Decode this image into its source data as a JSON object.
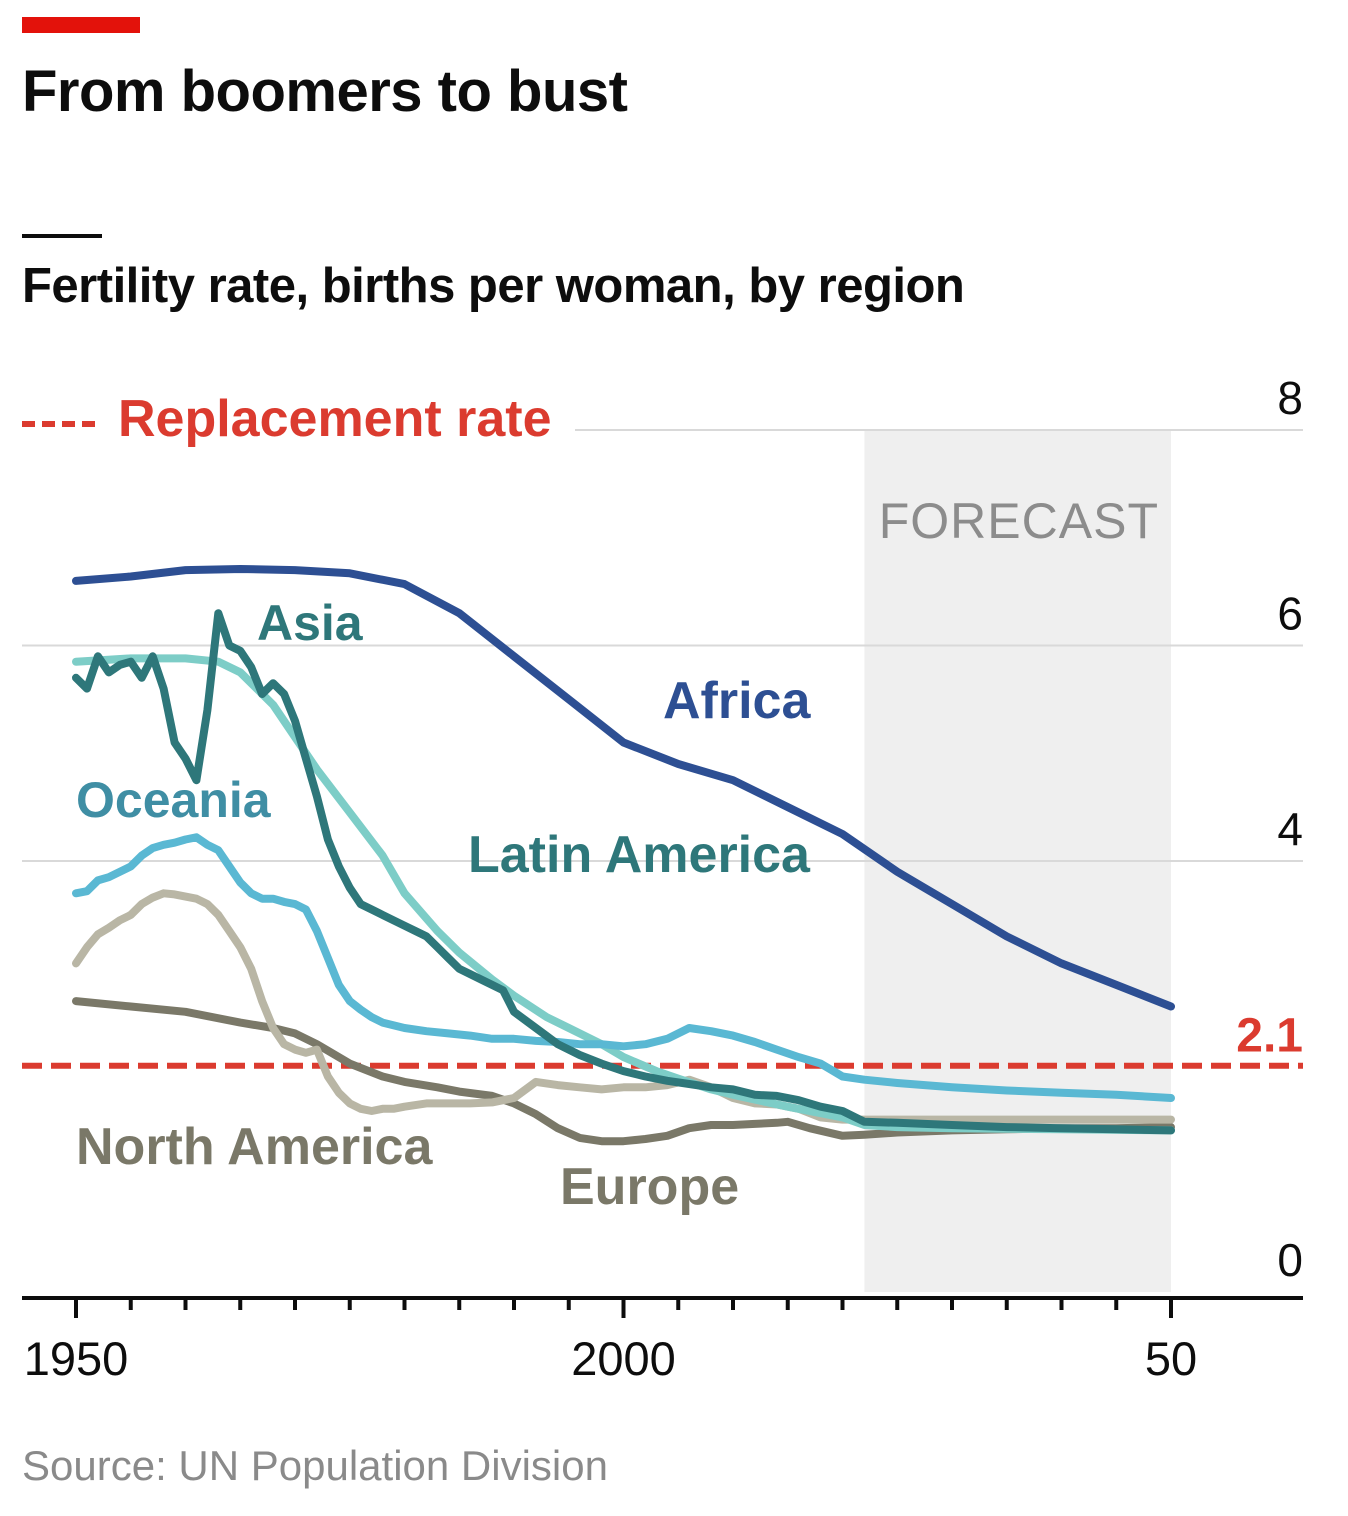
{
  "header": {
    "title": "From boomers to bust",
    "subtitle": "Fertility rate, births per woman, by region"
  },
  "footer": {
    "source": "Source: UN Population Division"
  },
  "colors": {
    "brand_red": "#e3120b",
    "replacement": "#db3b2f",
    "africa": "#2d4f93",
    "asia": "#2e777a",
    "latin_america": "#7dcdc7",
    "oceania": "#5ab8d3",
    "europe": "#b9b6a5",
    "north_america": "#7a7868",
    "forecast_shade": "#efefef",
    "grid": "#d9d9d9"
  },
  "chart_data": {
    "type": "line",
    "title": "From boomers to bust",
    "subtitle": "Fertility rate, births per woman, by region",
    "ylim": [
      0,
      8
    ],
    "xlim": [
      1950,
      2050
    ],
    "yticks": [
      "0",
      "4",
      "6",
      "8"
    ],
    "xticks": [
      {
        "year": 1950,
        "label": "1950"
      },
      {
        "year": 2000,
        "label": "2000"
      },
      {
        "year": 2050,
        "label": "50"
      }
    ],
    "grid": "horizontal",
    "y_axis_side": "right",
    "forecast": {
      "label": "FORECAST",
      "start": 2022,
      "end": 2050
    },
    "replacement": {
      "value": 2.1,
      "label": "2.1",
      "legend": "Replacement rate"
    },
    "series": [
      {
        "name": "Africa",
        "color": "#2d4f93",
        "points": [
          [
            1950,
            6.6
          ],
          [
            1955,
            6.64
          ],
          [
            1960,
            6.7
          ],
          [
            1965,
            6.71
          ],
          [
            1970,
            6.7
          ],
          [
            1975,
            6.67
          ],
          [
            1980,
            6.57
          ],
          [
            1985,
            6.3
          ],
          [
            1990,
            5.9
          ],
          [
            1995,
            5.5
          ],
          [
            2000,
            5.1
          ],
          [
            2005,
            4.9
          ],
          [
            2010,
            4.75
          ],
          [
            2015,
            4.5
          ],
          [
            2020,
            4.25
          ],
          [
            2025,
            3.9
          ],
          [
            2030,
            3.6
          ],
          [
            2035,
            3.3
          ],
          [
            2040,
            3.05
          ],
          [
            2045,
            2.85
          ],
          [
            2050,
            2.65
          ]
        ]
      },
      {
        "name": "Asia",
        "color": "#2e777a",
        "points": [
          [
            1950,
            5.7
          ],
          [
            1951,
            5.6
          ],
          [
            1952,
            5.9
          ],
          [
            1953,
            5.75
          ],
          [
            1954,
            5.82
          ],
          [
            1955,
            5.85
          ],
          [
            1956,
            5.7
          ],
          [
            1957,
            5.9
          ],
          [
            1958,
            5.6
          ],
          [
            1959,
            5.1
          ],
          [
            1960,
            4.95
          ],
          [
            1961,
            4.75
          ],
          [
            1962,
            5.4
          ],
          [
            1963,
            6.3
          ],
          [
            1964,
            6.0
          ],
          [
            1965,
            5.95
          ],
          [
            1966,
            5.8
          ],
          [
            1967,
            5.55
          ],
          [
            1968,
            5.65
          ],
          [
            1969,
            5.55
          ],
          [
            1970,
            5.3
          ],
          [
            1971,
            4.95
          ],
          [
            1972,
            4.6
          ],
          [
            1973,
            4.2
          ],
          [
            1974,
            3.95
          ],
          [
            1975,
            3.75
          ],
          [
            1976,
            3.6
          ],
          [
            1977,
            3.55
          ],
          [
            1978,
            3.5
          ],
          [
            1979,
            3.45
          ],
          [
            1980,
            3.4
          ],
          [
            1981,
            3.35
          ],
          [
            1982,
            3.3
          ],
          [
            1983,
            3.2
          ],
          [
            1984,
            3.1
          ],
          [
            1985,
            3.0
          ],
          [
            1986,
            2.95
          ],
          [
            1987,
            2.9
          ],
          [
            1988,
            2.85
          ],
          [
            1989,
            2.8
          ],
          [
            1990,
            2.6
          ],
          [
            1992,
            2.45
          ],
          [
            1994,
            2.3
          ],
          [
            1996,
            2.2
          ],
          [
            1998,
            2.12
          ],
          [
            2000,
            2.05
          ],
          [
            2002,
            2.0
          ],
          [
            2004,
            1.96
          ],
          [
            2006,
            1.93
          ],
          [
            2008,
            1.9
          ],
          [
            2010,
            1.88
          ],
          [
            2012,
            1.83
          ],
          [
            2014,
            1.82
          ],
          [
            2016,
            1.78
          ],
          [
            2018,
            1.72
          ],
          [
            2020,
            1.68
          ],
          [
            2022,
            1.58
          ],
          [
            2025,
            1.57
          ],
          [
            2030,
            1.55
          ],
          [
            2035,
            1.53
          ],
          [
            2040,
            1.52
          ],
          [
            2045,
            1.51
          ],
          [
            2050,
            1.5
          ]
        ]
      },
      {
        "name": "Latin America",
        "color": "#7dcdc7",
        "points": [
          [
            1950,
            5.85
          ],
          [
            1955,
            5.88
          ],
          [
            1960,
            5.88
          ],
          [
            1963,
            5.85
          ],
          [
            1965,
            5.75
          ],
          [
            1968,
            5.45
          ],
          [
            1970,
            5.15
          ],
          [
            1972,
            4.85
          ],
          [
            1975,
            4.45
          ],
          [
            1978,
            4.05
          ],
          [
            1980,
            3.7
          ],
          [
            1983,
            3.35
          ],
          [
            1985,
            3.15
          ],
          [
            1988,
            2.9
          ],
          [
            1990,
            2.75
          ],
          [
            1993,
            2.55
          ],
          [
            1995,
            2.45
          ],
          [
            1998,
            2.3
          ],
          [
            2000,
            2.18
          ],
          [
            2003,
            2.05
          ],
          [
            2005,
            1.98
          ],
          [
            2008,
            1.88
          ],
          [
            2010,
            1.83
          ],
          [
            2015,
            1.72
          ],
          [
            2020,
            1.62
          ],
          [
            2022,
            1.55
          ],
          [
            2025,
            1.53
          ],
          [
            2030,
            1.52
          ],
          [
            2040,
            1.51
          ],
          [
            2050,
            1.5
          ]
        ]
      },
      {
        "name": "Oceania",
        "color": "#5ab8d3",
        "points": [
          [
            1950,
            3.7
          ],
          [
            1951,
            3.72
          ],
          [
            1952,
            3.82
          ],
          [
            1953,
            3.85
          ],
          [
            1954,
            3.9
          ],
          [
            1955,
            3.95
          ],
          [
            1956,
            4.05
          ],
          [
            1957,
            4.12
          ],
          [
            1958,
            4.15
          ],
          [
            1959,
            4.17
          ],
          [
            1960,
            4.2
          ],
          [
            1961,
            4.22
          ],
          [
            1962,
            4.15
          ],
          [
            1963,
            4.1
          ],
          [
            1964,
            3.95
          ],
          [
            1965,
            3.8
          ],
          [
            1966,
            3.7
          ],
          [
            1967,
            3.65
          ],
          [
            1968,
            3.65
          ],
          [
            1969,
            3.62
          ],
          [
            1970,
            3.6
          ],
          [
            1971,
            3.55
          ],
          [
            1972,
            3.35
          ],
          [
            1973,
            3.1
          ],
          [
            1974,
            2.85
          ],
          [
            1975,
            2.7
          ],
          [
            1976,
            2.62
          ],
          [
            1977,
            2.55
          ],
          [
            1978,
            2.5
          ],
          [
            1980,
            2.45
          ],
          [
            1982,
            2.42
          ],
          [
            1984,
            2.4
          ],
          [
            1986,
            2.38
          ],
          [
            1988,
            2.35
          ],
          [
            1990,
            2.35
          ],
          [
            1992,
            2.33
          ],
          [
            1994,
            2.32
          ],
          [
            1996,
            2.3
          ],
          [
            1998,
            2.3
          ],
          [
            2000,
            2.28
          ],
          [
            2002,
            2.3
          ],
          [
            2004,
            2.35
          ],
          [
            2006,
            2.45
          ],
          [
            2008,
            2.42
          ],
          [
            2010,
            2.38
          ],
          [
            2012,
            2.32
          ],
          [
            2014,
            2.25
          ],
          [
            2016,
            2.18
          ],
          [
            2018,
            2.12
          ],
          [
            2020,
            2.0
          ],
          [
            2022,
            1.97
          ],
          [
            2025,
            1.94
          ],
          [
            2030,
            1.9
          ],
          [
            2035,
            1.87
          ],
          [
            2040,
            1.85
          ],
          [
            2045,
            1.83
          ],
          [
            2050,
            1.8
          ]
        ]
      },
      {
        "name": "Europe",
        "color": "#b9b6a5",
        "points": [
          [
            1950,
            3.05
          ],
          [
            1951,
            3.2
          ],
          [
            1952,
            3.32
          ],
          [
            1953,
            3.38
          ],
          [
            1954,
            3.45
          ],
          [
            1955,
            3.5
          ],
          [
            1956,
            3.6
          ],
          [
            1957,
            3.66
          ],
          [
            1958,
            3.7
          ],
          [
            1959,
            3.69
          ],
          [
            1960,
            3.67
          ],
          [
            1961,
            3.65
          ],
          [
            1962,
            3.6
          ],
          [
            1963,
            3.5
          ],
          [
            1964,
            3.35
          ],
          [
            1965,
            3.2
          ],
          [
            1966,
            3.0
          ],
          [
            1967,
            2.7
          ],
          [
            1968,
            2.45
          ],
          [
            1969,
            2.3
          ],
          [
            1970,
            2.25
          ],
          [
            1971,
            2.22
          ],
          [
            1972,
            2.25
          ],
          [
            1973,
            2.0
          ],
          [
            1974,
            1.85
          ],
          [
            1975,
            1.75
          ],
          [
            1976,
            1.7
          ],
          [
            1977,
            1.68
          ],
          [
            1978,
            1.7
          ],
          [
            1979,
            1.7
          ],
          [
            1980,
            1.72
          ],
          [
            1982,
            1.75
          ],
          [
            1984,
            1.75
          ],
          [
            1986,
            1.75
          ],
          [
            1988,
            1.76
          ],
          [
            1990,
            1.8
          ],
          [
            1992,
            1.95
          ],
          [
            1994,
            1.92
          ],
          [
            1996,
            1.9
          ],
          [
            1998,
            1.88
          ],
          [
            2000,
            1.9
          ],
          [
            2002,
            1.9
          ],
          [
            2004,
            1.92
          ],
          [
            2006,
            1.97
          ],
          [
            2008,
            1.9
          ],
          [
            2010,
            1.8
          ],
          [
            2012,
            1.75
          ],
          [
            2014,
            1.74
          ],
          [
            2016,
            1.7
          ],
          [
            2018,
            1.62
          ],
          [
            2020,
            1.6
          ],
          [
            2022,
            1.6
          ],
          [
            2025,
            1.6
          ],
          [
            2030,
            1.6
          ],
          [
            2040,
            1.6
          ],
          [
            2050,
            1.6
          ]
        ]
      },
      {
        "name": "North America",
        "color": "#7a7868",
        "points": [
          [
            1950,
            2.7
          ],
          [
            1955,
            2.65
          ],
          [
            1960,
            2.6
          ],
          [
            1965,
            2.5
          ],
          [
            1968,
            2.45
          ],
          [
            1970,
            2.4
          ],
          [
            1972,
            2.3
          ],
          [
            1975,
            2.12
          ],
          [
            1978,
            2.0
          ],
          [
            1980,
            1.95
          ],
          [
            1983,
            1.9
          ],
          [
            1985,
            1.86
          ],
          [
            1988,
            1.82
          ],
          [
            1990,
            1.75
          ],
          [
            1992,
            1.65
          ],
          [
            1994,
            1.52
          ],
          [
            1996,
            1.43
          ],
          [
            1998,
            1.4
          ],
          [
            2000,
            1.4
          ],
          [
            2002,
            1.42
          ],
          [
            2004,
            1.45
          ],
          [
            2006,
            1.52
          ],
          [
            2008,
            1.55
          ],
          [
            2010,
            1.55
          ],
          [
            2012,
            1.56
          ],
          [
            2014,
            1.57
          ],
          [
            2015,
            1.58
          ],
          [
            2017,
            1.52
          ],
          [
            2020,
            1.45
          ],
          [
            2022,
            1.46
          ],
          [
            2025,
            1.48
          ],
          [
            2030,
            1.5
          ],
          [
            2035,
            1.51
          ],
          [
            2040,
            1.52
          ],
          [
            2045,
            1.52
          ],
          [
            2050,
            1.53
          ]
        ]
      }
    ],
    "labels": [
      {
        "name": "Replacement rate"
      },
      {
        "name": "Asia"
      },
      {
        "name": "Africa"
      },
      {
        "name": "Oceania"
      },
      {
        "name": "Latin America"
      },
      {
        "name": "North America"
      },
      {
        "name": "Europe"
      }
    ]
  }
}
